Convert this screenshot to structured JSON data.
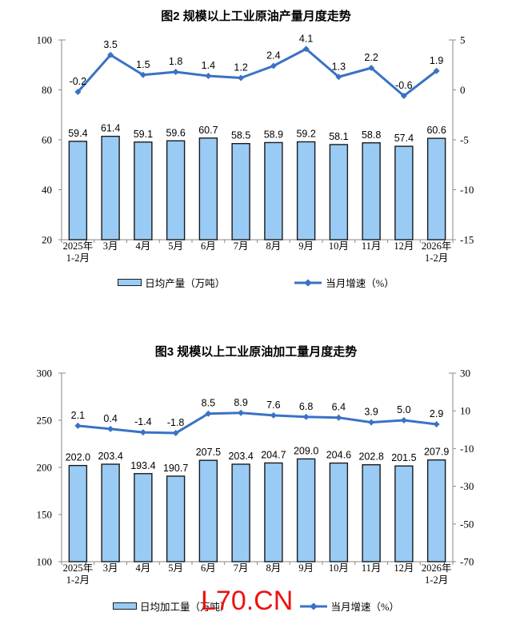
{
  "page": {
    "watermark": "L70.CN"
  },
  "chart_data": [
    {
      "type": "bar+line",
      "title": "图2 规模以上工业原油产量月度走势",
      "categories": [
        [
          "2025年",
          "1-2月"
        ],
        [
          "3月"
        ],
        [
          "4月"
        ],
        [
          "5月"
        ],
        [
          "6月"
        ],
        [
          "7月"
        ],
        [
          "8月"
        ],
        [
          "9月"
        ],
        [
          "10月"
        ],
        [
          "11月"
        ],
        [
          "12月"
        ],
        [
          "2026年",
          "1-2月"
        ]
      ],
      "series": [
        {
          "name": "日均产量（万吨）",
          "type": "bar",
          "axis": "left",
          "values": [
            59.4,
            61.4,
            59.1,
            59.6,
            60.7,
            58.5,
            58.9,
            59.2,
            58.1,
            58.8,
            57.4,
            60.6
          ]
        },
        {
          "name": "当月增速（%）",
          "type": "line",
          "axis": "right",
          "values": [
            -0.2,
            3.5,
            1.5,
            1.8,
            1.4,
            1.2,
            2.4,
            4.1,
            1.3,
            2.2,
            -0.6,
            1.9
          ]
        }
      ],
      "left_axis": {
        "min": 20,
        "max": 100,
        "ticks": [
          100,
          80,
          60,
          40,
          20
        ]
      },
      "right_axis": {
        "min": -15,
        "max": 5,
        "ticks": [
          5,
          0,
          -5,
          -10,
          -15
        ]
      },
      "colors": {
        "bar_fill": "#99CBF5",
        "bar_stroke": "#1a1a1a",
        "line": "#3A72C4",
        "axis": "#8a8a8a"
      },
      "legend_position": "bottom",
      "grid": false
    },
    {
      "type": "bar+line",
      "title": "图3 规模以上工业原油加工量月度走势",
      "categories": [
        [
          "2025年",
          "1-2月"
        ],
        [
          "3月"
        ],
        [
          "4月"
        ],
        [
          "5月"
        ],
        [
          "6月"
        ],
        [
          "7月"
        ],
        [
          "8月"
        ],
        [
          "9月"
        ],
        [
          "10月"
        ],
        [
          "11月"
        ],
        [
          "12月"
        ],
        [
          "2026年",
          "1-2月"
        ]
      ],
      "series": [
        {
          "name": "日均加工量（万吨）",
          "type": "bar",
          "axis": "left",
          "values": [
            202.0,
            203.4,
            193.4,
            190.7,
            207.5,
            203.4,
            204.7,
            209.0,
            204.6,
            202.8,
            201.5,
            207.9
          ]
        },
        {
          "name": "当月增速（%）",
          "type": "line",
          "axis": "right",
          "values": [
            2.1,
            0.4,
            -1.4,
            -1.8,
            8.5,
            8.9,
            7.6,
            6.8,
            6.4,
            3.9,
            5.0,
            2.9
          ]
        }
      ],
      "left_axis": {
        "min": 100,
        "max": 300,
        "ticks": [
          300,
          250,
          200,
          150,
          100
        ]
      },
      "right_axis": {
        "min": -70,
        "max": 30,
        "ticks": [
          30,
          10,
          -10,
          -30,
          -50,
          -70
        ]
      },
      "colors": {
        "bar_fill": "#99CBF5",
        "bar_stroke": "#1a1a1a",
        "line": "#3A72C4",
        "axis": "#8a8a8a"
      },
      "legend_position": "bottom",
      "grid": false
    }
  ]
}
